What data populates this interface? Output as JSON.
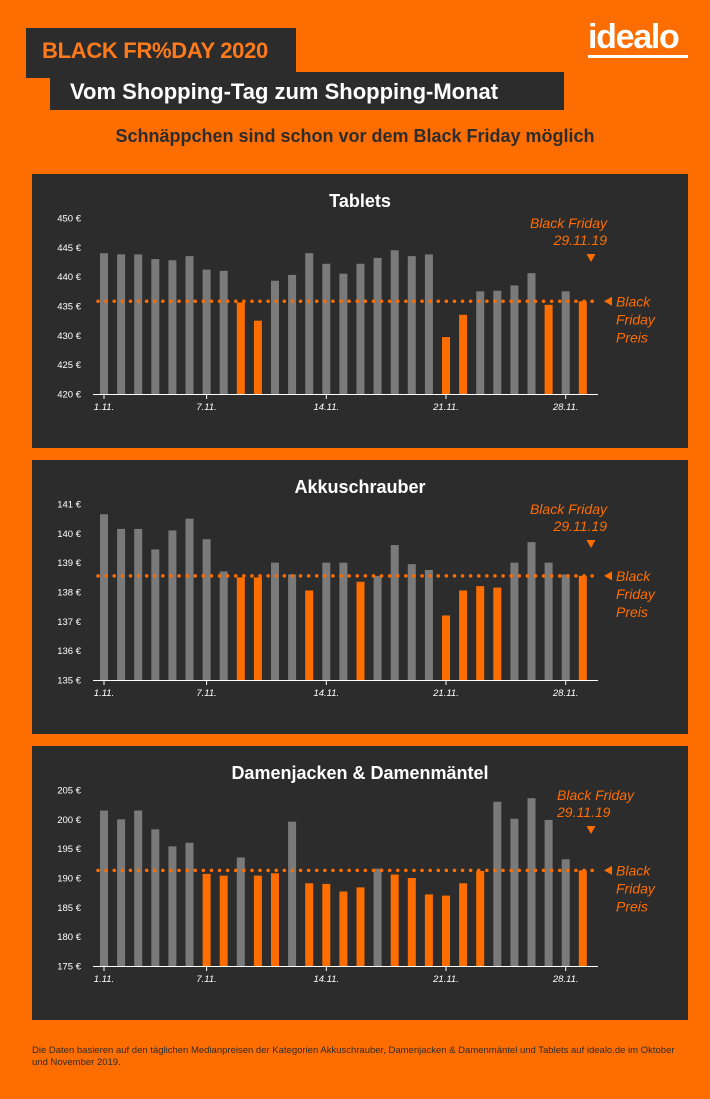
{
  "header": {
    "title": "BLACK FR%DAY 2020",
    "subtitle": "Vom Shopping-Tag zum Shopping-Monat",
    "tagline": "Schnäppchen sind schon vor dem Black Friday möglich",
    "logo": "idealo"
  },
  "colors": {
    "background": "#fe6d00",
    "panel": "#2c2c2c",
    "gray_bar": "#7a7a7a",
    "orange_bar": "#fe6d00"
  },
  "annotation": {
    "line1": "Black Friday",
    "line2": "29.11.19",
    "price1": "Black",
    "price2": "Friday",
    "price3": "Preis"
  },
  "footnote": "Die Daten basieren auf den täglichen Medianpreisen der Kategorien Akkuschrauber, Damenjacken & Damenmäntel und Tablets auf idealo.de im Oktober und November 2019.",
  "chart_data": [
    {
      "type": "bar",
      "title": "Tablets",
      "x_tick_labels": [
        "1.11.",
        "7.11.",
        "14.11.",
        "21.11.",
        "28.11."
      ],
      "x_tick_days": [
        1,
        7,
        14,
        21,
        28
      ],
      "yticks": [
        450,
        445,
        440,
        435,
        430,
        425,
        420
      ],
      "ytick_labels": [
        "450 €",
        "445 €",
        "440 €",
        "435 €",
        "430 €",
        "425 €",
        "420 €"
      ],
      "ylim": [
        420,
        450
      ],
      "black_friday_price": 435.8,
      "days": [
        1,
        2,
        3,
        4,
        5,
        6,
        7,
        8,
        9,
        10,
        11,
        12,
        13,
        14,
        15,
        16,
        17,
        18,
        19,
        20,
        21,
        22,
        23,
        24,
        25,
        26,
        27,
        28,
        29
      ],
      "values": [
        444.0,
        443.8,
        443.8,
        443.0,
        442.8,
        443.5,
        441.2,
        441.0,
        435.6,
        432.5,
        439.3,
        440.3,
        444.0,
        442.2,
        440.5,
        442.2,
        443.2,
        444.5,
        443.5,
        443.8,
        429.7,
        433.5,
        437.5,
        437.6,
        438.5,
        440.6,
        435.2,
        437.5,
        435.8
      ],
      "highlight": [
        0,
        0,
        0,
        0,
        0,
        0,
        0,
        0,
        1,
        1,
        0,
        0,
        0,
        0,
        0,
        0,
        0,
        0,
        0,
        0,
        1,
        1,
        0,
        0,
        0,
        0,
        1,
        0,
        1
      ]
    },
    {
      "type": "bar",
      "title": "Akkuschrauber",
      "x_tick_labels": [
        "1.11.",
        "7.11.",
        "14.11.",
        "21.11.",
        "28.11."
      ],
      "x_tick_days": [
        1,
        7,
        14,
        21,
        28
      ],
      "yticks": [
        141,
        140,
        139,
        138,
        137,
        136,
        135
      ],
      "ytick_labels": [
        "141 €",
        "140 €",
        "139 €",
        "138 €",
        "137 €",
        "136 €",
        "135 €"
      ],
      "ylim": [
        135,
        141
      ],
      "black_friday_price": 138.55,
      "days": [
        1,
        2,
        3,
        4,
        5,
        6,
        7,
        8,
        9,
        10,
        11,
        12,
        13,
        14,
        15,
        16,
        17,
        18,
        19,
        20,
        21,
        22,
        23,
        24,
        25,
        26,
        27,
        28,
        29
      ],
      "values": [
        140.65,
        140.15,
        140.15,
        139.45,
        140.1,
        140.5,
        139.8,
        138.7,
        138.5,
        138.5,
        139.0,
        138.6,
        138.05,
        139.0,
        139.0,
        138.35,
        138.55,
        139.6,
        138.95,
        138.75,
        137.2,
        138.05,
        138.2,
        138.15,
        139.0,
        139.7,
        139.0,
        138.6,
        138.55
      ],
      "highlight": [
        0,
        0,
        0,
        0,
        0,
        0,
        0,
        0,
        1,
        1,
        0,
        0,
        1,
        0,
        0,
        1,
        0,
        0,
        0,
        0,
        1,
        1,
        1,
        1,
        0,
        0,
        0,
        0,
        1
      ]
    },
    {
      "type": "bar",
      "title": "Damenjacken & Damenmäntel",
      "x_tick_labels": [
        "1.11.",
        "7.11.",
        "14.11.",
        "21.11.",
        "28.11."
      ],
      "x_tick_days": [
        1,
        7,
        14,
        21,
        28
      ],
      "yticks": [
        205,
        200,
        195,
        190,
        185,
        180,
        175
      ],
      "ytick_labels": [
        "205 €",
        "200 €",
        "195 €",
        "190 €",
        "185 €",
        "180 €",
        "175 €"
      ],
      "ylim": [
        175,
        205
      ],
      "black_friday_price": 191.3,
      "days": [
        1,
        2,
        3,
        4,
        5,
        6,
        7,
        8,
        9,
        10,
        11,
        12,
        13,
        14,
        15,
        16,
        17,
        18,
        19,
        20,
        21,
        22,
        23,
        24,
        25,
        26,
        27,
        28,
        29
      ],
      "values": [
        201.5,
        200.0,
        201.5,
        198.3,
        195.4,
        196.0,
        190.7,
        190.4,
        193.5,
        190.4,
        190.8,
        199.6,
        189.1,
        189.0,
        187.7,
        188.4,
        191.6,
        190.6,
        190.0,
        187.2,
        187.0,
        189.1,
        191.2,
        203.0,
        200.1,
        203.6,
        199.9,
        193.2,
        191.3
      ],
      "highlight": [
        0,
        0,
        0,
        0,
        0,
        0,
        1,
        1,
        0,
        1,
        1,
        0,
        1,
        1,
        1,
        1,
        0,
        1,
        1,
        1,
        1,
        1,
        1,
        0,
        0,
        0,
        0,
        0,
        1
      ]
    }
  ]
}
